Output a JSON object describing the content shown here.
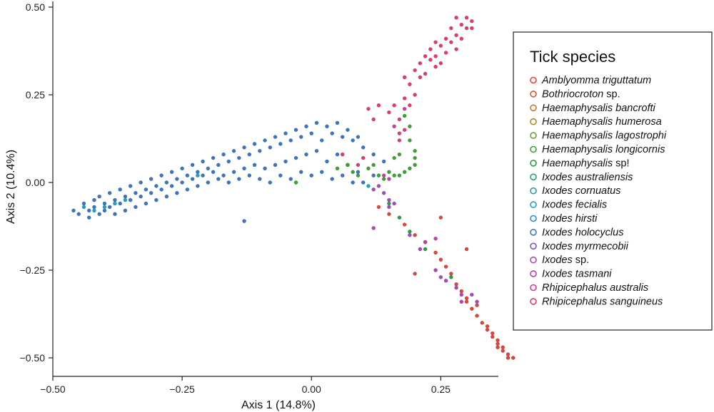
{
  "chart_data": {
    "type": "scatter",
    "xlabel": "Axis 1 (14.8%)",
    "ylabel": "Axis 2 (10.4%)",
    "xlim": [
      -0.5,
      0.4
    ],
    "ylim": [
      -0.5,
      0.5
    ],
    "x_ticks": [
      -0.5,
      -0.25,
      0.0,
      0.25
    ],
    "x_tick_labels": [
      "−0.50",
      "−0.25",
      "0.00",
      "0.25"
    ],
    "y_ticks": [
      0.5,
      0.25,
      0.0,
      -0.25,
      -0.5
    ],
    "y_tick_labels": [
      "0.50",
      "0.25",
      "0.00",
      "−0.25",
      "−0.50"
    ],
    "grid": false,
    "legend": {
      "title": "Tick species",
      "position": "right",
      "entries": [
        {
          "italic": "Amblyomma triguttatum",
          "suffix": "",
          "color": "#e0453a"
        },
        {
          "italic": "Bothriocroton",
          "suffix": " sp.",
          "color": "#d95a2b"
        },
        {
          "italic": "Haemaphysalis bancrofti",
          "suffix": "",
          "color": "#c8782a"
        },
        {
          "italic": "Haemaphysalis humerosa",
          "suffix": "",
          "color": "#a88a22"
        },
        {
          "italic": "Haemaphysalis lagostrophi",
          "suffix": "",
          "color": "#6aa12c"
        },
        {
          "italic": "Haemaphysalis longicornis",
          "suffix": "",
          "color": "#3aa234"
        },
        {
          "italic": "Haemaphysalis",
          "suffix": " sp!",
          "color": "#2a9a45"
        },
        {
          "italic": "Ixodes australiensis",
          "suffix": "",
          "color": "#27a077"
        },
        {
          "italic": "Ixodes cornuatus",
          "suffix": "",
          "color": "#22a29f"
        },
        {
          "italic": "Ixodes fecialis",
          "suffix": "",
          "color": "#1fa3c2"
        },
        {
          "italic": "Ixodes hirsti",
          "suffix": "",
          "color": "#2590d4"
        },
        {
          "italic": "Ixodes holocyclus",
          "suffix": "",
          "color": "#3a75c4"
        },
        {
          "italic": "Ixodes myrmecobii",
          "suffix": "",
          "color": "#7e55c6"
        },
        {
          "italic": "Ixodes",
          "suffix": " sp.",
          "color": "#a448bf"
        },
        {
          "italic": "Ixodes tasmani",
          "suffix": "",
          "color": "#c23fa8"
        },
        {
          "italic": "Rhipicephalus australis",
          "suffix": "",
          "color": "#d83a8c"
        },
        {
          "italic": "Rhipicephalus sanguineus",
          "suffix": "",
          "color": "#e23a70"
        }
      ]
    },
    "series": [
      {
        "color": "#3a75c4",
        "points": [
          [
            -0.46,
            -0.08
          ],
          [
            -0.45,
            -0.09
          ],
          [
            -0.44,
            -0.06
          ],
          [
            -0.43,
            -0.08
          ],
          [
            -0.43,
            -0.1
          ],
          [
            -0.42,
            -0.05
          ],
          [
            -0.42,
            -0.07
          ],
          [
            -0.41,
            -0.09
          ],
          [
            -0.41,
            -0.04
          ],
          [
            -0.4,
            -0.06
          ],
          [
            -0.4,
            -0.08
          ],
          [
            -0.39,
            -0.03
          ],
          [
            -0.39,
            -0.07
          ],
          [
            -0.38,
            -0.05
          ],
          [
            -0.38,
            -0.09
          ],
          [
            -0.37,
            -0.02
          ],
          [
            -0.37,
            -0.06
          ],
          [
            -0.36,
            -0.04
          ],
          [
            -0.36,
            -0.08
          ],
          [
            -0.35,
            -0.01
          ],
          [
            -0.35,
            -0.05
          ],
          [
            -0.34,
            -0.03
          ],
          [
            -0.34,
            -0.07
          ],
          [
            -0.33,
            0.0
          ],
          [
            -0.33,
            -0.04
          ],
          [
            -0.32,
            -0.02
          ],
          [
            -0.32,
            -0.06
          ],
          [
            -0.31,
            0.01
          ],
          [
            -0.31,
            -0.03
          ],
          [
            -0.3,
            -0.01
          ],
          [
            -0.3,
            -0.05
          ],
          [
            -0.29,
            0.02
          ],
          [
            -0.29,
            -0.02
          ],
          [
            -0.28,
            0.0
          ],
          [
            -0.28,
            -0.04
          ],
          [
            -0.27,
            0.03
          ],
          [
            -0.27,
            -0.01
          ],
          [
            -0.26,
            0.01
          ],
          [
            -0.26,
            -0.03
          ],
          [
            -0.25,
            0.04
          ],
          [
            -0.25,
            0.0
          ],
          [
            -0.24,
            0.02
          ],
          [
            -0.24,
            -0.02
          ],
          [
            -0.23,
            0.05
          ],
          [
            -0.23,
            0.01
          ],
          [
            -0.22,
            0.03
          ],
          [
            -0.22,
            -0.01
          ],
          [
            -0.21,
            0.06
          ],
          [
            -0.21,
            0.02
          ],
          [
            -0.2,
            0.04
          ],
          [
            -0.2,
            0.0
          ],
          [
            -0.19,
            0.07
          ],
          [
            -0.19,
            0.03
          ],
          [
            -0.18,
            0.05
          ],
          [
            -0.18,
            0.01
          ],
          [
            -0.17,
            0.08
          ],
          [
            -0.17,
            0.02
          ],
          [
            -0.16,
            0.06
          ],
          [
            -0.16,
            0.0
          ],
          [
            -0.15,
            0.09
          ],
          [
            -0.15,
            0.03
          ],
          [
            -0.14,
            0.07
          ],
          [
            -0.14,
            0.01
          ],
          [
            -0.13,
            0.1
          ],
          [
            -0.13,
            0.04
          ],
          [
            -0.13,
            -0.11
          ],
          [
            -0.12,
            0.08
          ],
          [
            -0.12,
            0.02
          ],
          [
            -0.11,
            0.11
          ],
          [
            -0.11,
            0.05
          ],
          [
            -0.1,
            0.09
          ],
          [
            -0.1,
            0.01
          ],
          [
            -0.09,
            0.12
          ],
          [
            -0.09,
            0.04
          ],
          [
            -0.08,
            0.1
          ],
          [
            -0.08,
            0.0
          ],
          [
            -0.07,
            0.13
          ],
          [
            -0.07,
            0.05
          ],
          [
            -0.06,
            0.11
          ],
          [
            -0.06,
            0.02
          ],
          [
            -0.05,
            0.14
          ],
          [
            -0.05,
            0.06
          ],
          [
            -0.04,
            0.12
          ],
          [
            -0.04,
            0.01
          ],
          [
            -0.03,
            0.15
          ],
          [
            -0.03,
            0.07
          ],
          [
            -0.02,
            0.13
          ],
          [
            -0.02,
            0.03
          ],
          [
            -0.01,
            0.16
          ],
          [
            -0.01,
            0.08
          ],
          [
            0.0,
            0.14
          ],
          [
            0.0,
            0.02
          ],
          [
            0.01,
            0.17
          ],
          [
            0.01,
            0.09
          ],
          [
            0.02,
            0.12
          ],
          [
            0.02,
            0.03
          ],
          [
            0.03,
            0.16
          ],
          [
            0.03,
            0.06
          ],
          [
            0.04,
            0.14
          ],
          [
            0.04,
            0.01
          ],
          [
            0.05,
            0.17
          ],
          [
            0.05,
            0.08
          ],
          [
            0.06,
            0.13
          ],
          [
            0.06,
            0.02
          ],
          [
            0.07,
            0.15
          ],
          [
            0.07,
            0.05
          ],
          [
            0.08,
            0.12
          ],
          [
            0.08,
            0.0
          ],
          [
            0.09,
            0.13
          ],
          [
            0.09,
            0.03
          ],
          [
            0.1,
            0.1
          ],
          [
            0.1,
            0.0
          ],
          [
            0.12,
            0.08
          ],
          [
            0.12,
            0.02
          ],
          [
            0.14,
            0.06
          ]
        ]
      },
      {
        "color": "#1fa3c2",
        "points": [
          [
            -0.44,
            -0.07
          ],
          [
            -0.42,
            -0.08
          ],
          [
            -0.4,
            -0.07
          ],
          [
            -0.38,
            -0.06
          ],
          [
            -0.36,
            -0.05
          ],
          [
            -0.22,
            0.02
          ],
          [
            0.11,
            -0.01
          ]
        ]
      },
      {
        "color": "#e23a70",
        "points": [
          [
            0.16,
            0.22
          ],
          [
            0.17,
            0.18
          ],
          [
            0.17,
            0.14
          ],
          [
            0.18,
            0.24
          ],
          [
            0.18,
            0.15
          ],
          [
            0.17,
            0.12
          ],
          [
            0.18,
            0.3
          ],
          [
            0.19,
            0.28
          ],
          [
            0.2,
            0.32
          ],
          [
            0.21,
            0.3
          ],
          [
            0.21,
            0.34
          ],
          [
            0.22,
            0.36
          ],
          [
            0.22,
            0.31
          ],
          [
            0.23,
            0.35
          ],
          [
            0.23,
            0.38
          ],
          [
            0.24,
            0.33
          ],
          [
            0.24,
            0.36
          ],
          [
            0.25,
            0.39
          ],
          [
            0.25,
            0.34
          ],
          [
            0.26,
            0.41
          ],
          [
            0.26,
            0.37
          ],
          [
            0.27,
            0.4
          ],
          [
            0.27,
            0.44
          ],
          [
            0.28,
            0.38
          ],
          [
            0.28,
            0.42
          ],
          [
            0.29,
            0.45
          ],
          [
            0.29,
            0.41
          ],
          [
            0.3,
            0.44
          ],
          [
            0.3,
            0.47
          ],
          [
            0.31,
            0.46
          ],
          [
            0.31,
            0.44
          ],
          [
            0.28,
            0.47
          ],
          [
            0.24,
            0.4
          ],
          [
            0.2,
            0.25
          ],
          [
            0.19,
            0.22
          ],
          [
            0.15,
            0.2
          ],
          [
            0.13,
            0.22
          ],
          [
            0.11,
            0.21
          ],
          [
            0.12,
            0.18
          ],
          [
            0.09,
            0.05
          ],
          [
            0.1,
            0.07
          ],
          [
            0.06,
            0.08
          ]
        ]
      },
      {
        "color": "#3aa234",
        "points": [
          [
            0.18,
            0.19
          ],
          [
            0.19,
            0.16
          ],
          [
            0.19,
            0.12
          ],
          [
            0.2,
            0.09
          ],
          [
            0.2,
            0.07
          ],
          [
            0.2,
            0.05
          ],
          [
            0.19,
            0.04
          ],
          [
            0.18,
            0.03
          ],
          [
            0.17,
            0.02
          ],
          [
            0.16,
            0.02
          ],
          [
            0.15,
            0.03
          ],
          [
            0.14,
            0.01
          ],
          [
            0.13,
            0.02
          ],
          [
            0.12,
            0.05
          ],
          [
            0.11,
            0.04
          ],
          [
            0.09,
            0.02
          ],
          [
            0.08,
            0.03
          ],
          [
            0.07,
            0.05
          ],
          [
            -0.03,
            0.0
          ],
          [
            0.05,
            0.04
          ],
          [
            0.16,
            0.07
          ],
          [
            0.17,
            0.08
          ]
        ]
      },
      {
        "color": "#e0453a",
        "points": [
          [
            0.39,
            -0.5
          ],
          [
            0.38,
            -0.49
          ],
          [
            0.37,
            -0.48
          ],
          [
            0.37,
            -0.47
          ],
          [
            0.36,
            -0.46
          ],
          [
            0.36,
            -0.45
          ],
          [
            0.35,
            -0.44
          ],
          [
            0.35,
            -0.43
          ],
          [
            0.34,
            -0.42
          ],
          [
            0.34,
            -0.41
          ],
          [
            0.33,
            -0.4
          ],
          [
            0.32,
            -0.38
          ],
          [
            0.31,
            -0.36
          ],
          [
            0.3,
            -0.34
          ],
          [
            0.3,
            -0.33
          ],
          [
            0.29,
            -0.31
          ],
          [
            0.28,
            -0.29
          ],
          [
            0.27,
            -0.26
          ],
          [
            0.26,
            -0.24
          ],
          [
            0.25,
            -0.22
          ],
          [
            0.24,
            -0.2
          ],
          [
            0.22,
            -0.17
          ],
          [
            0.2,
            -0.15
          ],
          [
            0.18,
            -0.12
          ],
          [
            0.15,
            -0.09
          ],
          [
            0.13,
            -0.07
          ],
          [
            0.36,
            -0.47
          ],
          [
            0.38,
            -0.5
          ],
          [
            0.3,
            -0.19
          ],
          [
            0.25,
            -0.1
          ],
          [
            0.32,
            -0.35
          ],
          [
            0.2,
            -0.26
          ]
        ]
      },
      {
        "color": "#a448bf",
        "points": [
          [
            0.12,
            -0.02
          ],
          [
            0.13,
            -0.01
          ],
          [
            0.14,
            -0.03
          ],
          [
            0.15,
            -0.05
          ],
          [
            0.16,
            -0.06
          ],
          [
            0.24,
            -0.25
          ],
          [
            0.25,
            -0.27
          ],
          [
            0.26,
            -0.28
          ],
          [
            0.28,
            -0.3
          ],
          [
            0.29,
            -0.32
          ],
          [
            0.31,
            -0.32
          ],
          [
            0.32,
            -0.34
          ],
          [
            0.19,
            -0.15
          ],
          [
            0.21,
            -0.19
          ],
          [
            0.15,
            -0.07
          ]
        ]
      },
      {
        "color": "#2a9a45",
        "points": [
          [
            0.15,
            -0.06
          ],
          [
            0.17,
            -0.1
          ],
          [
            0.19,
            -0.14
          ],
          [
            0.22,
            -0.19
          ],
          [
            0.27,
            -0.27
          ]
        ]
      },
      {
        "color": "#c23fa8",
        "points": [
          [
            0.14,
            0.02
          ],
          [
            0.15,
            0.01
          ],
          [
            0.18,
            0.21
          ],
          [
            0.16,
            0.16
          ],
          [
            0.29,
            -0.34
          ],
          [
            0.12,
            -0.13
          ],
          [
            0.24,
            -0.16
          ],
          [
            0.22,
            -0.17
          ]
        ]
      }
    ]
  }
}
